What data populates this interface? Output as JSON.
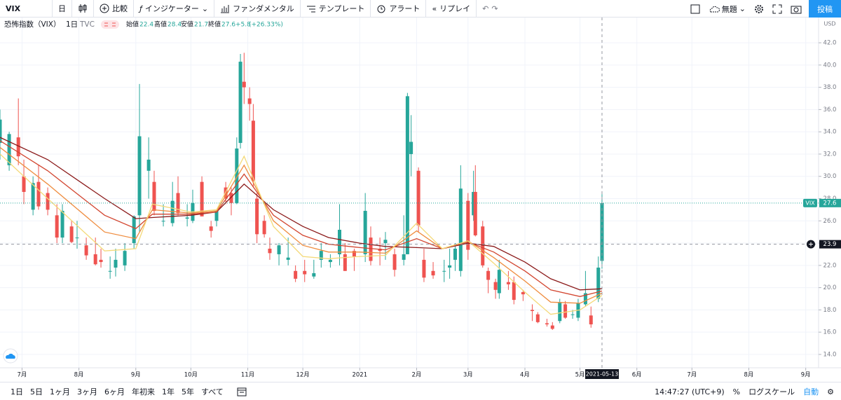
{
  "toolbar": {
    "symbol": "VIX",
    "interval": "日",
    "compare": "比較",
    "indicators": "インジケーター",
    "fundamentals": "ファンダメンタル",
    "templates": "テンプレート",
    "alert": "アラート",
    "replay": "リプレイ",
    "layout_name": "無題",
    "publish": "投稿"
  },
  "legend": {
    "name": "恐怖指数（VIX）",
    "interval": "1日",
    "source": "TVC",
    "open_label": "始値",
    "high_label": "高値",
    "low_label": "安値",
    "close_label": "終値",
    "change": "+5.8",
    "change_pct": "(+26.33%)"
  },
  "footer": {
    "ranges": [
      "1日",
      "5日",
      "1ヶ月",
      "3ヶ月",
      "6ヶ月",
      "年初来",
      "1年",
      "5年",
      "すべて"
    ],
    "clock": "14:47:27 (UTC+9)",
    "percent": "%",
    "log": "ログスケール",
    "auto": "自動"
  },
  "chart_data": {
    "type": "candlestick",
    "x": [
      "2020-06-19",
      "2020-06-24",
      "2020-06-29",
      "2020-07-02",
      "2020-07-07",
      "2020-07-10",
      "2020-07-15",
      "2020-07-20",
      "2020-07-23",
      "2020-07-28",
      "2020-07-31",
      "2020-08-05",
      "2020-08-10",
      "2020-08-13",
      "2020-08-18",
      "2020-08-21",
      "2020-08-26",
      "2020-08-31",
      "2020-09-03",
      "2020-09-08",
      "2020-09-11",
      "2020-09-16",
      "2020-09-21",
      "2020-09-24",
      "2020-09-29",
      "2020-10-02",
      "2020-10-07",
      "2020-10-12",
      "2020-10-15",
      "2020-10-20",
      "2020-10-23",
      "2020-10-26",
      "2020-10-28",
      "2020-10-30",
      "2020-11-02",
      "2020-11-04",
      "2020-11-06",
      "2020-11-10",
      "2020-11-13",
      "2020-11-18",
      "2020-11-23",
      "2020-11-27",
      "2020-12-02",
      "2020-12-07",
      "2020-12-11",
      "2020-12-16",
      "2020-12-21",
      "2020-12-24",
      "2020-12-29",
      "2021-01-04",
      "2021-01-07",
      "2021-01-12",
      "2021-01-15",
      "2021-01-20",
      "2021-01-25",
      "2021-01-27",
      "2021-01-29",
      "2021-02-02",
      "2021-02-05",
      "2021-02-10",
      "2021-02-16",
      "2021-02-19",
      "2021-02-22",
      "2021-02-25",
      "2021-03-01",
      "2021-03-04",
      "2021-03-05",
      "2021-03-09",
      "2021-03-12",
      "2021-03-16",
      "2021-03-18",
      "2021-03-23",
      "2021-03-26",
      "2021-03-31",
      "2021-04-05",
      "2021-04-08",
      "2021-04-13",
      "2021-04-16",
      "2021-04-20",
      "2021-04-23",
      "2021-04-27",
      "2021-04-30",
      "2021-05-04",
      "2021-05-07",
      "2021-05-11",
      "2021-05-13"
    ],
    "open": [
      33.0,
      31.0,
      33.5,
      30.0,
      27.0,
      29.5,
      28.5,
      26.5,
      24.5,
      25.5,
      24.5,
      23.8,
      23.0,
      22.5,
      21.5,
      21.8,
      22.0,
      24.0,
      26.5,
      30.5,
      29.5,
      26.0,
      25.8,
      28.5,
      26.2,
      26.0,
      29.5,
      25.5,
      26.0,
      29.0,
      28.5,
      27.6,
      33.0,
      38.5,
      37.0,
      35.0,
      28.0,
      26.0,
      23.5,
      23.0,
      22.5,
      21.5,
      21.5,
      21.0,
      22.5,
      22.3,
      23.0,
      23.0,
      23.3,
      23.0,
      24.5,
      23.5,
      24.0,
      23.0,
      22.5,
      23.0,
      32.0,
      30.5,
      22.5,
      21.5,
      21.5,
      21.8,
      22.5,
      21.5,
      27.8,
      26.5,
      28.6,
      25.5,
      21.5,
      20.5,
      19.5,
      20.5,
      20.5,
      19.6,
      18.0,
      17.6,
      16.8,
      16.6,
      17.0,
      18.5,
      17.6,
      17.3,
      18.5,
      17.5,
      19.0,
      22.4
    ],
    "high": [
      36.0,
      34.0,
      37.0,
      31.5,
      30.0,
      31.0,
      29.0,
      27.5,
      27.5,
      26.0,
      26.0,
      24.5,
      24.5,
      23.5,
      22.8,
      23.5,
      24.0,
      26.5,
      38.3,
      33.5,
      30.5,
      27.5,
      29.5,
      30.0,
      27.5,
      28.8,
      30.0,
      26.0,
      27.0,
      29.5,
      29.0,
      33.5,
      41.0,
      41.1,
      38.0,
      36.5,
      28.5,
      26.5,
      24.5,
      24.0,
      24.5,
      22.0,
      22.5,
      22.5,
      24.0,
      23.0,
      27.5,
      24.0,
      23.5,
      28.5,
      25.5,
      24.5,
      25.0,
      23.5,
      26.5,
      37.5,
      35.5,
      30.8,
      23.5,
      22.3,
      22.5,
      23.5,
      24.0,
      31.0,
      28.5,
      30.5,
      31.0,
      26.0,
      21.8,
      20.8,
      22.5,
      21.5,
      21.0,
      19.8,
      18.5,
      17.8,
      17.2,
      16.9,
      19.0,
      18.8,
      18.0,
      19.0,
      21.5,
      18.3,
      22.8,
      28.4
    ],
    "low": [
      31.5,
      30.5,
      31.0,
      27.5,
      26.5,
      27.0,
      26.5,
      24.0,
      24.0,
      24.0,
      23.5,
      22.5,
      22.0,
      21.8,
      20.8,
      21.0,
      21.5,
      23.5,
      25.0,
      28.0,
      26.5,
      25.5,
      25.5,
      26.5,
      25.5,
      25.8,
      26.5,
      24.5,
      25.5,
      27.5,
      26.5,
      27.5,
      32.5,
      36.5,
      35.0,
      29.0,
      24.0,
      24.5,
      22.5,
      22.0,
      22.0,
      20.5,
      20.5,
      20.8,
      21.8,
      21.8,
      22.0,
      21.5,
      21.5,
      22.3,
      22.0,
      22.0,
      22.5,
      21.0,
      22.0,
      23.0,
      30.0,
      25.0,
      20.5,
      20.8,
      20.5,
      20.8,
      21.5,
      21.0,
      22.5,
      26.0,
      24.6,
      21.8,
      19.5,
      19.0,
      19.0,
      19.8,
      18.5,
      18.8,
      17.0,
      16.8,
      16.5,
      16.2,
      16.8,
      17.2,
      17.2,
      17.0,
      18.3,
      16.4,
      18.7,
      21.7
    ],
    "close": [
      35.1,
      33.8,
      31.8,
      28.6,
      29.4,
      27.3,
      27.0,
      24.5,
      26.9,
      24.1,
      24.5,
      22.9,
      22.1,
      22.3,
      21.5,
      22.5,
      23.3,
      26.4,
      33.6,
      31.5,
      26.9,
      26.0,
      27.8,
      26.7,
      26.3,
      27.6,
      26.4,
      25.1,
      26.9,
      28.0,
      27.6,
      32.5,
      40.3,
      38.0,
      36.5,
      29.6,
      24.8,
      24.8,
      23.1,
      23.8,
      22.7,
      20.8,
      21.2,
      21.3,
      23.3,
      22.5,
      25.2,
      21.5,
      22.8,
      26.9,
      22.4,
      23.3,
      24.3,
      21.6,
      23.0,
      37.2,
      33.1,
      25.6,
      20.9,
      21.1,
      21.5,
      22.0,
      23.5,
      28.9,
      23.4,
      28.6,
      24.7,
      22.0,
      20.7,
      19.8,
      21.6,
      20.3,
      18.9,
      19.4,
      17.9,
      16.9,
      16.7,
      16.3,
      18.7,
      17.3,
      17.6,
      18.6,
      19.5,
      16.7,
      21.8,
      27.6
    ],
    "up_color": "#26a69a",
    "down_color": "#ef5350",
    "overlay": {
      "x": [
        "2020-06-19",
        "2020-07-15",
        "2020-08-15",
        "2020-09-01",
        "2020-09-10",
        "2020-10-01",
        "2020-10-15",
        "2020-10-30",
        "2020-11-15",
        "2020-12-01",
        "2020-12-15",
        "2021-01-01",
        "2021-01-15",
        "2021-02-01",
        "2021-02-15",
        "2021-03-01",
        "2021-03-15",
        "2021-04-01",
        "2021-04-15",
        "2021-05-01",
        "2021-05-13"
      ],
      "lines": [
        {
          "color": "#8b1a1a",
          "values": [
            33.5,
            31.5,
            28,
            26.2,
            26.3,
            26.5,
            26.8,
            29.3,
            27,
            25.5,
            24.5,
            24,
            23.7,
            23.6,
            23.5,
            24,
            23.7,
            22.3,
            20.8,
            19.8,
            19.9
          ]
        },
        {
          "color": "#d2452f",
          "values": [
            33.2,
            30.5,
            26.5,
            25.3,
            26.6,
            26.6,
            26.8,
            30.2,
            26.5,
            24.7,
            23.9,
            23.6,
            23.4,
            24.4,
            23.5,
            24.1,
            23.2,
            21.5,
            19.8,
            19.2,
            19.7
          ]
        },
        {
          "color": "#ef8c3e",
          "values": [
            32.6,
            29.3,
            25,
            24.4,
            27,
            26.7,
            26.9,
            31,
            26,
            23.8,
            23.2,
            23.2,
            23.1,
            25.1,
            23.5,
            24.2,
            22.7,
            20.6,
            18.7,
            18.6,
            19.5
          ]
        },
        {
          "color": "#f4d978",
          "values": [
            32,
            28,
            23.3,
            23.5,
            27.5,
            26.8,
            27,
            31.8,
            25.5,
            22.8,
            22.6,
            22.8,
            22.9,
            25.8,
            23.5,
            24.2,
            22.2,
            19.6,
            17.6,
            18,
            19.3
          ]
        }
      ]
    },
    "xlim": [
      "2020-06-19",
      "2021-09-08"
    ],
    "xticks": [
      {
        "value": "2020-07-01",
        "label": "7月"
      },
      {
        "value": "2020-08-01",
        "label": "8月"
      },
      {
        "value": "2020-09-01",
        "label": "9月"
      },
      {
        "value": "2020-10-01",
        "label": "10月"
      },
      {
        "value": "2020-11-01",
        "label": "11月"
      },
      {
        "value": "2020-12-01",
        "label": "12月"
      },
      {
        "value": "2021-01-01",
        "label": "2021"
      },
      {
        "value": "2021-02-01",
        "label": "2月"
      },
      {
        "value": "2021-03-01",
        "label": "3月"
      },
      {
        "value": "2021-04-01",
        "label": "4月"
      },
      {
        "value": "2021-05-01",
        "label": "5月"
      },
      {
        "value": "2021-06-01",
        "label": "6月"
      },
      {
        "value": "2021-07-01",
        "label": "7月"
      },
      {
        "value": "2021-08-01",
        "label": "8月"
      },
      {
        "value": "2021-09-01",
        "label": "9月"
      }
    ],
    "ylim": [
      12.8,
      44.27
    ],
    "yticks": [
      {
        "value": 14,
        "label": "14.0"
      },
      {
        "value": 16,
        "label": "16.0"
      },
      {
        "value": 18,
        "label": "18.0"
      },
      {
        "value": 20,
        "label": "20.0"
      },
      {
        "value": 22,
        "label": "22.0"
      },
      {
        "value": 24,
        "label": "24.0"
      },
      {
        "value": 26,
        "label": "26.0"
      },
      {
        "value": 28,
        "label": "28.0"
      },
      {
        "value": 30,
        "label": "30.0"
      },
      {
        "value": 32,
        "label": "32.0"
      },
      {
        "value": 34,
        "label": "34.0"
      },
      {
        "value": 36,
        "label": "36.0"
      },
      {
        "value": 38,
        "label": "38.0"
      },
      {
        "value": 40,
        "label": "40.0"
      },
      {
        "value": 42,
        "label": "42.0"
      }
    ],
    "grid": true,
    "axis_unit": "USD",
    "symbol_tag": "VIX",
    "crosshair": {
      "x": "2021-05-13",
      "y": 23.9
    }
  }
}
